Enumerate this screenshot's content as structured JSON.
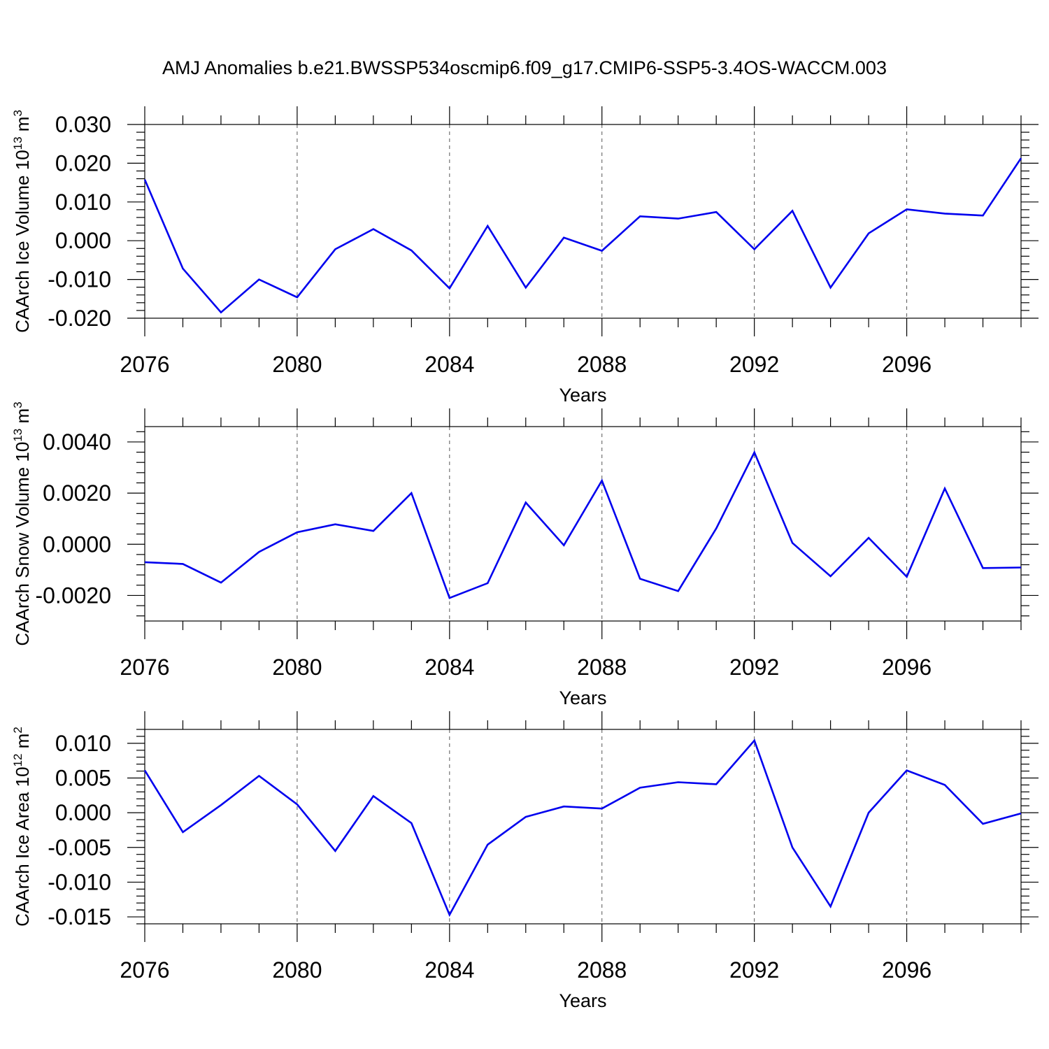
{
  "figure": {
    "title": "AMJ Anomalies b.e21.BWSSP534oscmip6.f09_g17.CMIP6-SSP5-3.4OS-WACCM.003"
  },
  "colors": {
    "series": "#0000ee",
    "axes": "#000000",
    "grid": "#555555"
  },
  "chart_data": [
    {
      "type": "line",
      "ylabel": {
        "main": "CAArch Ice Volume 10",
        "exponent": "13",
        "unit": " m",
        "unit_exponent": "3"
      },
      "xlabel": "Years",
      "xlim": [
        2076,
        2099
      ],
      "ylim": [
        -0.02,
        0.03
      ],
      "x_ticks": [
        2076,
        2080,
        2084,
        2088,
        2092,
        2096
      ],
      "x_tick_labels": [
        "2076",
        "2080",
        "2084",
        "2088",
        "2092",
        "2096"
      ],
      "x_grid": [
        2080,
        2084,
        2088,
        2092,
        2096
      ],
      "y_ticks": [
        -0.02,
        -0.01,
        0.0,
        0.01,
        0.02,
        0.03
      ],
      "y_tick_labels": [
        "-0.020",
        "-0.010",
        "0.000",
        "0.010",
        "0.020",
        "0.030"
      ],
      "y_minor_step": 0.002,
      "x": [
        2076,
        2077,
        2078,
        2079,
        2080,
        2081,
        2082,
        2083,
        2084,
        2085,
        2086,
        2087,
        2088,
        2089,
        2090,
        2091,
        2092,
        2093,
        2094,
        2095,
        2096,
        2097,
        2098,
        2099
      ],
      "series": [
        {
          "values": [
            0.0158,
            -0.0072,
            -0.0185,
            -0.01,
            -0.0146,
            -0.0022,
            0.003,
            -0.0025,
            -0.0123,
            0.0038,
            -0.0121,
            0.0008,
            -0.0026,
            0.0063,
            0.0057,
            0.0074,
            -0.0022,
            0.0077,
            -0.0121,
            0.0019,
            0.0081,
            0.007,
            0.0065,
            0.0213
          ]
        }
      ]
    },
    {
      "type": "line",
      "ylabel": {
        "main": "CAArch Snow Volume 10",
        "exponent": "13",
        "unit": " m",
        "unit_exponent": "3"
      },
      "xlabel": "Years",
      "xlim": [
        2076,
        2099
      ],
      "ylim": [
        -0.003,
        0.0046
      ],
      "x_ticks": [
        2076,
        2080,
        2084,
        2088,
        2092,
        2096
      ],
      "x_tick_labels": [
        "2076",
        "2080",
        "2084",
        "2088",
        "2092",
        "2096"
      ],
      "x_grid": [
        2080,
        2084,
        2088,
        2092,
        2096
      ],
      "y_ticks": [
        -0.002,
        0.0,
        0.002,
        0.004
      ],
      "y_tick_labels": [
        "-0.0020",
        "0.0000",
        "0.0020",
        "0.0040"
      ],
      "y_minor_step": 0.0004,
      "x": [
        2076,
        2077,
        2078,
        2079,
        2080,
        2081,
        2082,
        2083,
        2084,
        2085,
        2086,
        2087,
        2088,
        2089,
        2090,
        2091,
        2092,
        2093,
        2094,
        2095,
        2096,
        2097,
        2098,
        2099
      ],
      "series": [
        {
          "values": [
            -0.0007,
            -0.00077,
            -0.0015,
            -0.0003,
            0.00047,
            0.00078,
            0.00052,
            0.002,
            -0.0021,
            -0.00152,
            0.00163,
            -4e-05,
            0.00249,
            -0.00135,
            -0.00183,
            0.00062,
            0.00359,
            5e-05,
            -0.00125,
            0.00025,
            -0.00127,
            0.00218,
            -0.00093,
            -0.00091
          ]
        }
      ]
    },
    {
      "type": "line",
      "ylabel": {
        "main": "CAArch Ice Area 10",
        "exponent": "12",
        "unit": " m",
        "unit_exponent": "2"
      },
      "xlabel": "Years",
      "xlim": [
        2076,
        2099
      ],
      "ylim": [
        -0.016,
        0.012
      ],
      "x_ticks": [
        2076,
        2080,
        2084,
        2088,
        2092,
        2096
      ],
      "x_tick_labels": [
        "2076",
        "2080",
        "2084",
        "2088",
        "2092",
        "2096"
      ],
      "x_grid": [
        2080,
        2084,
        2088,
        2092,
        2096
      ],
      "y_ticks": [
        -0.015,
        -0.01,
        -0.005,
        0.0,
        0.005,
        0.01
      ],
      "y_tick_labels": [
        "-0.015",
        "-0.010",
        "-0.005",
        "0.000",
        "0.005",
        "0.010"
      ],
      "y_minor_step": 0.001,
      "x": [
        2076,
        2077,
        2078,
        2079,
        2080,
        2081,
        2082,
        2083,
        2084,
        2085,
        2086,
        2087,
        2088,
        2089,
        2090,
        2091,
        2092,
        2093,
        2094,
        2095,
        2096,
        2097,
        2098,
        2099
      ],
      "series": [
        {
          "values": [
            0.0061,
            -0.0028,
            0.0011,
            0.0053,
            0.0012,
            -0.0055,
            0.0024,
            -0.0015,
            -0.0147,
            -0.0046,
            -0.0006,
            0.0009,
            0.0006,
            0.0036,
            0.0044,
            0.0041,
            0.0104,
            -0.005,
            -0.0135,
            0.0,
            0.0061,
            0.004,
            -0.0016,
            -0.0001
          ]
        }
      ]
    }
  ]
}
